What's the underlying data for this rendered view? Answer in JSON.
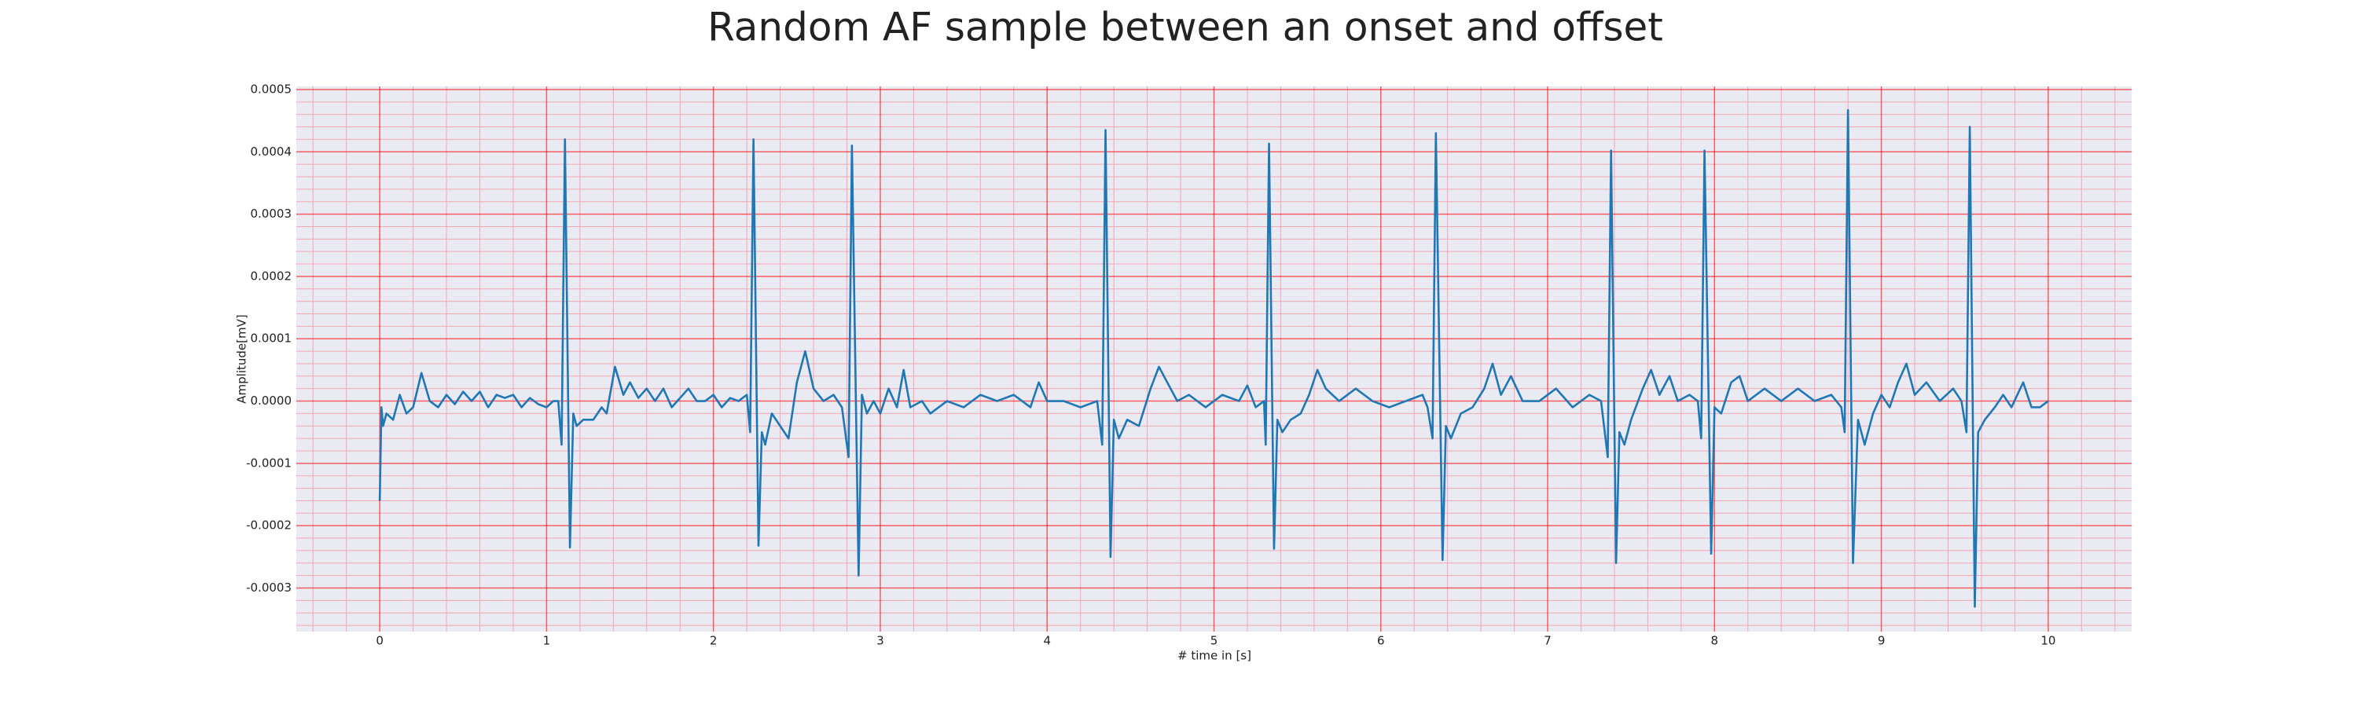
{
  "chart_data": {
    "type": "line",
    "title": "Random AF sample between an onset and offset",
    "xlabel": "# time in [s]",
    "ylabel": "Amplitude[mV]",
    "color": "#1f77b4",
    "grid": true,
    "grid_color": "#ff0000",
    "minor_grid_color": "#f4a6b4",
    "background": "#eaeaf2",
    "xlim": [
      -0.5,
      10.5
    ],
    "ylim": [
      -0.00037,
      0.000505
    ],
    "xticks": [
      0,
      1,
      2,
      3,
      4,
      5,
      6,
      7,
      8,
      9,
      10
    ],
    "yticks": [
      -0.0003,
      -0.0002,
      -0.0001,
      {
        "value": 0,
        "label": "0.0000"
      },
      0.0001,
      0.0002,
      0.0003,
      0.0004,
      0.0005
    ],
    "xminorticks": [
      -0.4,
      -0.2,
      0.2,
      0.4,
      0.6,
      0.8,
      1.2,
      1.4,
      1.6,
      1.8,
      2.2,
      2.4,
      2.6,
      2.8,
      3.2,
      3.4,
      3.6,
      3.8,
      4.2,
      4.4,
      4.6,
      4.8,
      5.2,
      5.4,
      5.6,
      5.8,
      6.2,
      6.4,
      6.6,
      6.8,
      7.2,
      7.4,
      7.6,
      7.8,
      8.2,
      8.4,
      8.6,
      8.8,
      9.2,
      9.4,
      9.6,
      9.8,
      10.2,
      10.4
    ],
    "yminorticks": [
      -0.00036,
      -0.00034,
      -0.00032,
      -0.00028,
      -0.00026,
      -0.00024,
      -0.00022,
      -0.00018,
      -0.00016,
      -0.00014,
      -0.00012,
      -8e-05,
      -6e-05,
      -4e-05,
      -2e-05,
      2e-05,
      4e-05,
      6e-05,
      8e-05,
      0.00012,
      0.00014,
      0.00016,
      0.00018,
      0.00022,
      0.00024,
      0.00026,
      0.00028,
      0.00032,
      0.00034,
      0.00036,
      0.00038,
      0.00042,
      0.00044,
      0.00046,
      0.00048
    ],
    "x": [
      0,
      0.01,
      0.02,
      0.04,
      0.08,
      0.12,
      0.16,
      0.2,
      0.25,
      0.3,
      0.35,
      0.4,
      0.45,
      0.5,
      0.55,
      0.6,
      0.65,
      0.7,
      0.75,
      0.8,
      0.85,
      0.9,
      0.95,
      1.0,
      1.04,
      1.07,
      1.09,
      1.11,
      1.14,
      1.16,
      1.18,
      1.22,
      1.28,
      1.33,
      1.36,
      1.41,
      1.46,
      1.5,
      1.55,
      1.6,
      1.65,
      1.7,
      1.75,
      1.8,
      1.85,
      1.9,
      1.95,
      2.0,
      2.05,
      2.1,
      2.15,
      2.2,
      2.22,
      2.24,
      2.27,
      2.29,
      2.31,
      2.35,
      2.4,
      2.45,
      2.5,
      2.55,
      2.6,
      2.66,
      2.72,
      2.77,
      2.81,
      2.83,
      2.87,
      2.89,
      2.92,
      2.96,
      3.0,
      3.05,
      3.1,
      3.14,
      3.18,
      3.25,
      3.3,
      3.4,
      3.5,
      3.6,
      3.7,
      3.8,
      3.9,
      3.95,
      4.0,
      4.1,
      4.2,
      4.3,
      4.33,
      4.35,
      4.38,
      4.4,
      4.43,
      4.48,
      4.55,
      4.62,
      4.67,
      4.72,
      4.78,
      4.85,
      4.95,
      5.05,
      5.15,
      5.2,
      5.25,
      5.3,
      5.31,
      5.33,
      5.36,
      5.38,
      5.41,
      5.46,
      5.52,
      5.57,
      5.62,
      5.67,
      5.75,
      5.85,
      5.95,
      6.05,
      6.15,
      6.25,
      6.28,
      6.31,
      6.33,
      6.37,
      6.39,
      6.42,
      6.48,
      6.55,
      6.62,
      6.67,
      6.72,
      6.78,
      6.85,
      6.95,
      7.05,
      7.15,
      7.25,
      7.32,
      7.36,
      7.38,
      7.41,
      7.43,
      7.46,
      7.5,
      7.57,
      7.62,
      7.67,
      7.73,
      7.78,
      7.85,
      7.9,
      7.92,
      7.94,
      7.98,
      8.0,
      8.04,
      8.1,
      8.15,
      8.2,
      8.3,
      8.4,
      8.5,
      8.6,
      8.7,
      8.76,
      8.78,
      8.8,
      8.83,
      8.86,
      8.9,
      8.95,
      9.0,
      9.05,
      9.1,
      9.15,
      9.2,
      9.27,
      9.35,
      9.43,
      9.48,
      9.51,
      9.53,
      9.56,
      9.58,
      9.62,
      9.68,
      9.73,
      9.78,
      9.85,
      9.9,
      9.95,
      10.0
    ],
    "values": [
      -0.00016,
      -1e-05,
      -4e-05,
      -2e-05,
      -3e-05,
      1e-05,
      -2e-05,
      -1e-05,
      4.5e-05,
      0,
      -1e-05,
      1e-05,
      -5e-06,
      1.5e-05,
      0,
      1.5e-05,
      -1e-05,
      1e-05,
      5e-06,
      1e-05,
      -1e-05,
      5e-06,
      -5e-06,
      -1e-05,
      0,
      0,
      -7e-05,
      0.00042,
      -0.000235,
      -2e-05,
      -4e-05,
      -3e-05,
      -3e-05,
      -1e-05,
      -2e-05,
      5.5e-05,
      1e-05,
      3e-05,
      5e-06,
      2e-05,
      0,
      2e-05,
      -1e-05,
      5e-06,
      2e-05,
      0,
      0,
      1e-05,
      -1e-05,
      5e-06,
      0,
      1e-05,
      -5e-05,
      0.00042,
      -0.000232,
      -5e-05,
      -7e-05,
      -2e-05,
      -4e-05,
      -6e-05,
      3e-05,
      8e-05,
      2e-05,
      0,
      1e-05,
      -1e-05,
      -9e-05,
      0.00041,
      -0.00028,
      1e-05,
      -2e-05,
      0,
      -2e-05,
      2e-05,
      -1e-05,
      5e-05,
      -1e-05,
      0,
      -2e-05,
      0,
      -1e-05,
      1e-05,
      0,
      1e-05,
      -1e-05,
      3e-05,
      0,
      0,
      -1e-05,
      0,
      -7e-05,
      0.000435,
      -0.00025,
      -3e-05,
      -6e-05,
      -3e-05,
      -4e-05,
      2e-05,
      5.5e-05,
      3e-05,
      0,
      1e-05,
      -1e-05,
      1e-05,
      0,
      2.5e-05,
      -1e-05,
      0,
      -7e-05,
      0.000413,
      -0.000237,
      -3e-05,
      -5e-05,
      -3e-05,
      -2e-05,
      1e-05,
      5e-05,
      2e-05,
      0,
      2e-05,
      0,
      -1e-05,
      0,
      1e-05,
      -1e-05,
      -6e-05,
      0.00043,
      -0.000255,
      -4e-05,
      -6e-05,
      -2e-05,
      -1e-05,
      2e-05,
      6e-05,
      1e-05,
      4e-05,
      0,
      0,
      2e-05,
      -1e-05,
      1e-05,
      0,
      -9e-05,
      0.000402,
      -0.00026,
      -5e-05,
      -7e-05,
      -3e-05,
      2e-05,
      5e-05,
      1e-05,
      4e-05,
      0,
      1e-05,
      0,
      -6e-05,
      0.000402,
      -0.000245,
      -1e-05,
      -2e-05,
      3e-05,
      4e-05,
      0,
      2e-05,
      0,
      2e-05,
      0,
      1e-05,
      -1e-05,
      -5e-05,
      0.000467,
      -0.00026,
      -3e-05,
      -7e-05,
      -2e-05,
      1e-05,
      -1e-05,
      3e-05,
      6e-05,
      1e-05,
      3e-05,
      0,
      2e-05,
      0,
      -5e-05,
      0.00044,
      -0.00033,
      -5e-05,
      -3e-05,
      -1e-05,
      1e-05,
      -1e-05,
      3e-05,
      -1e-05,
      -1e-05,
      0
    ]
  }
}
